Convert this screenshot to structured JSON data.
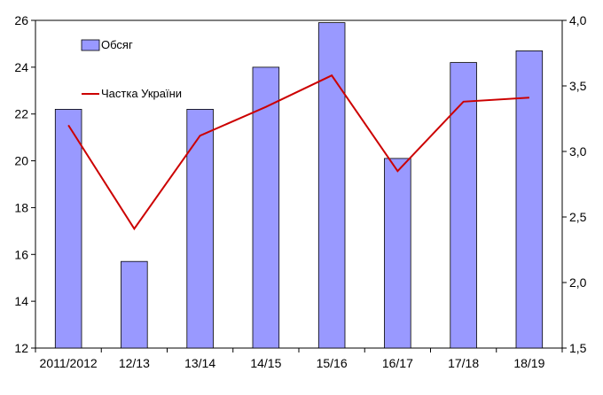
{
  "chart_data": {
    "type": "bar",
    "categories": [
      "2011/2012",
      "12/13",
      "13/14",
      "14/15",
      "15/16",
      "16/17",
      "17/18",
      "18/19"
    ],
    "series": [
      {
        "name": "Обсяг",
        "type": "bar",
        "axis": "left",
        "color": "#9999ff",
        "values": [
          22.2,
          15.7,
          22.2,
          24.0,
          25.9,
          20.1,
          24.2,
          24.7
        ]
      },
      {
        "name": "Частка України",
        "type": "line",
        "axis": "right",
        "color": "#cc0000",
        "values": [
          3.2,
          2.41,
          3.12,
          3.34,
          3.58,
          2.85,
          3.38,
          3.41
        ]
      }
    ],
    "y_left": {
      "ylim": [
        12,
        26
      ],
      "ticks": [
        "12",
        "14",
        "16",
        "18",
        "20",
        "22",
        "24",
        "26"
      ]
    },
    "y_right": {
      "ylim": [
        1.5,
        4.0
      ],
      "ticks": [
        "1,5",
        "2,0",
        "2,5",
        "3,0",
        "3,5",
        "4,0"
      ]
    },
    "title": "",
    "xlabel": "",
    "ylabel": "",
    "grid": false,
    "legend": "top-left"
  }
}
